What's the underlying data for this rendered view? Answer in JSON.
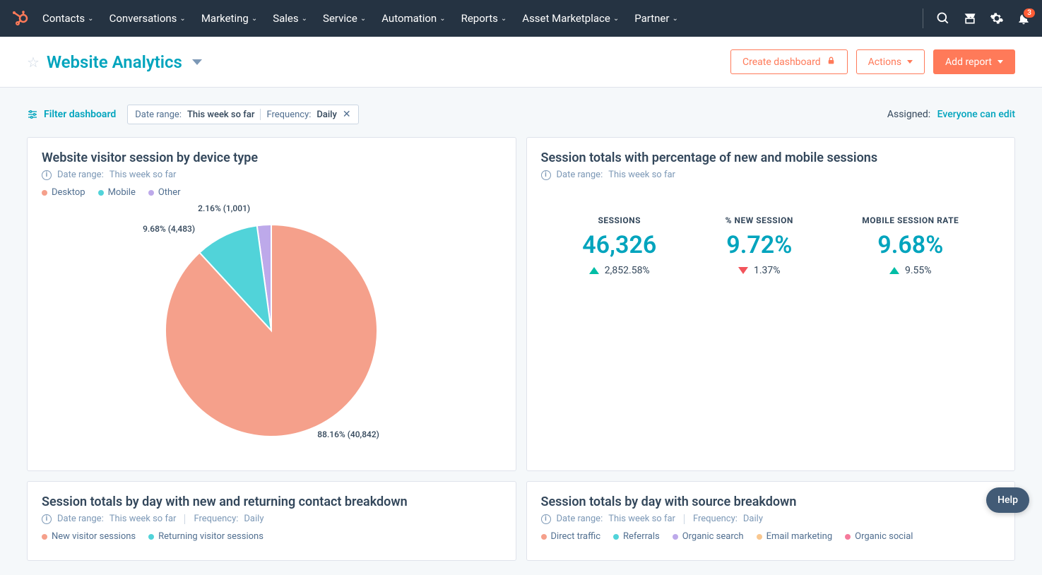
{
  "nav": {
    "items": [
      "Contacts",
      "Conversations",
      "Marketing",
      "Sales",
      "Service",
      "Automation",
      "Reports",
      "Asset Marketplace",
      "Partner"
    ],
    "notification_count": "3"
  },
  "header": {
    "title": "Website Analytics",
    "create_dashboard": "Create dashboard",
    "actions": "Actions",
    "add_report": "Add report"
  },
  "filter": {
    "filter_dashboard": "Filter dashboard",
    "date_range_label": "Date range:",
    "date_range_value": "This week so far",
    "frequency_label": "Frequency:",
    "frequency_value": "Daily",
    "assigned_label": "Assigned:",
    "assigned_value": "Everyone can edit"
  },
  "card1": {
    "title": "Website visitor session by device type",
    "date_range_label": "Date range:",
    "date_range_value": "This week so far",
    "chart": {
      "type": "pie",
      "slices": [
        {
          "label": "Desktop",
          "pct": 88.16,
          "count": 40842,
          "color": "#f5a08b"
        },
        {
          "label": "Mobile",
          "pct": 9.68,
          "count": 4483,
          "color": "#51d3d9"
        },
        {
          "label": "Other",
          "pct": 2.16,
          "count": 1001,
          "color": "#bda9ea"
        }
      ],
      "radius": 150,
      "label_fontsize": 12,
      "label_desktop": "88.16% (40,842)",
      "label_mobile": "9.68% (4,483)",
      "label_other": "2.16% (1,001)"
    }
  },
  "card2": {
    "title": "Session totals with percentage of new and mobile sessions",
    "date_range_label": "Date range:",
    "date_range_value": "This week so far",
    "kpis": [
      {
        "label": "SESSIONS",
        "value": "46,326",
        "delta": "2,852.58%",
        "direction": "up"
      },
      {
        "label": "% NEW SESSION",
        "value": "9.72%",
        "delta": "1.37%",
        "direction": "down"
      },
      {
        "label": "MOBILE SESSION RATE",
        "value": "9.68%",
        "delta": "9.55%",
        "direction": "up"
      }
    ]
  },
  "card3": {
    "title": "Session totals by day with new and returning contact breakdown",
    "date_range_label": "Date range:",
    "date_range_value": "This week so far",
    "frequency_label": "Frequency:",
    "frequency_value": "Daily",
    "legend": [
      {
        "label": "New visitor sessions",
        "color": "#f5a08b"
      },
      {
        "label": "Returning visitor sessions",
        "color": "#51d3d9"
      }
    ]
  },
  "card4": {
    "title": "Session totals by day with source breakdown",
    "date_range_label": "Date range:",
    "date_range_value": "This week so far",
    "frequency_label": "Frequency:",
    "frequency_value": "Daily",
    "legend": [
      {
        "label": "Direct traffic",
        "color": "#f5a08b"
      },
      {
        "label": "Referrals",
        "color": "#51d3d9"
      },
      {
        "label": "Organic search",
        "color": "#bda9ea"
      },
      {
        "label": "Email marketing",
        "color": "#f9c78f"
      },
      {
        "label": "Organic social",
        "color": "#f57a9b"
      }
    ]
  },
  "help": {
    "label": "Help"
  },
  "colors": {
    "brand_teal": "#00a4bd",
    "orange": "#ff7a59",
    "nav_bg": "#253342"
  }
}
